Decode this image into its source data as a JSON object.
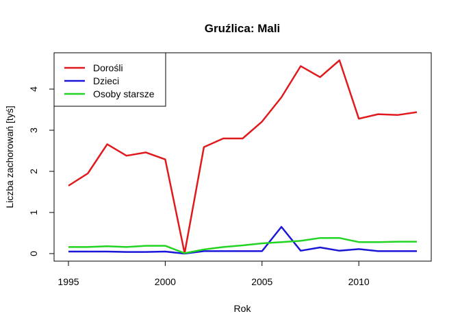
{
  "chart_data": {
    "type": "line",
    "title": "Gruźlica: Mali",
    "xlabel": "Rok",
    "ylabel": "Liczba zachorowań [tyś]",
    "xlim": [
      1995,
      2013
    ],
    "ylim": [
      0,
      4.7
    ],
    "x_ticks": [
      1995,
      2000,
      2005,
      2010
    ],
    "y_ticks": [
      0,
      1,
      2,
      3,
      4
    ],
    "legend_position": "top-left",
    "x": [
      1995,
      1996,
      1997,
      1998,
      1999,
      2000,
      2001,
      2002,
      2003,
      2004,
      2005,
      2006,
      2007,
      2008,
      2009,
      2010,
      2011,
      2012,
      2013
    ],
    "series": [
      {
        "name": "Dorośli",
        "color": "#e0191c",
        "values": [
          1.65,
          1.95,
          2.66,
          2.38,
          2.46,
          2.29,
          0.01,
          2.59,
          2.8,
          2.8,
          3.21,
          3.8,
          4.56,
          4.29,
          4.7,
          3.28,
          3.39,
          3.37,
          3.44
        ]
      },
      {
        "name": "Dzieci",
        "color": "#1a16d9",
        "values": [
          0.05,
          0.05,
          0.05,
          0.04,
          0.04,
          0.05,
          0.0,
          0.06,
          0.06,
          0.06,
          0.06,
          0.65,
          0.07,
          0.15,
          0.07,
          0.11,
          0.06,
          0.06,
          0.06
        ]
      },
      {
        "name": "Osoby starsze",
        "color": "#22d422",
        "values": [
          0.16,
          0.16,
          0.18,
          0.16,
          0.19,
          0.19,
          0.01,
          0.1,
          0.16,
          0.2,
          0.25,
          0.28,
          0.31,
          0.38,
          0.38,
          0.28,
          0.28,
          0.29,
          0.29
        ]
      }
    ]
  }
}
